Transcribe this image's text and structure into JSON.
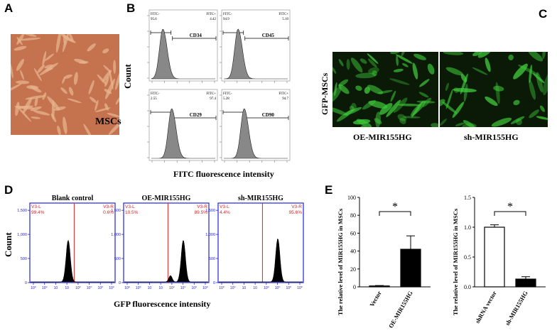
{
  "panels": {
    "A": {
      "letter": "A",
      "image_label": "MSCs",
      "colors": {
        "bg": "#c5724f",
        "cell": "#e6b48c"
      }
    },
    "B": {
      "letter": "B",
      "ylabel": "Count",
      "xlabel": "FITC fluorescence intensity",
      "plots": [
        {
          "marker": "CD34",
          "neg_label": "FITC-",
          "pos_label": "FITC+",
          "neg_pct": "95.6",
          "pos_pct": "4.42"
        },
        {
          "marker": "CD45",
          "neg_label": "FITC-",
          "pos_label": "FITC+",
          "neg_pct": "94.9",
          "pos_pct": "5.10"
        },
        {
          "marker": "CD29",
          "neg_label": "FITC-",
          "pos_label": "FITC+",
          "neg_pct": "2.55",
          "pos_pct": "97.4"
        },
        {
          "marker": "CD90",
          "neg_label": "FITC-",
          "pos_label": "FITC+",
          "neg_pct": "5.28",
          "pos_pct": "94.7"
        }
      ]
    },
    "C": {
      "letter": "C",
      "row_label": "GFP-MSCs",
      "images": [
        "OE-MIR155HG",
        "sh-MIR155HG"
      ],
      "colors": {
        "bg": "#0a1a06",
        "cell": "#3fc83a"
      }
    },
    "D": {
      "letter": "D",
      "ylabel": "Count",
      "xlabel": "GFP fluorescence intensity",
      "y_ticks": [
        "0",
        "500",
        "1,000",
        "1,500"
      ],
      "plots": [
        {
          "title": "Blank control",
          "left_gate": "V3-L",
          "right_gate": "V3-R",
          "left_pct": "99.4%",
          "right_pct": "0.6%"
        },
        {
          "title": "OE-MIR155HG",
          "left_gate": "V3-L",
          "right_gate": "V3-R",
          "left_pct": "10.5%",
          "right_pct": "89.5%"
        },
        {
          "title": "sh-MIR155HG",
          "left_gate": "V3-L",
          "right_gate": "V3-R",
          "left_pct": "4.4%",
          "right_pct": "95.6%"
        }
      ],
      "colors": {
        "axis": "#2222dd",
        "gate": "#dd2222",
        "label": "#dd2222"
      }
    },
    "E": {
      "letter": "E"
    }
  },
  "chart_data": [
    {
      "type": "bar",
      "categories": [
        "Vector",
        "OE-MIR155HG"
      ],
      "values": [
        1,
        42
      ],
      "errors": [
        0.5,
        15
      ],
      "ylabel": "The relative level of MIR155HG in MSCs",
      "ylim": [
        0,
        100
      ],
      "yticks": [
        "0",
        "20",
        "40",
        "60",
        "80",
        "100"
      ],
      "significance": "*",
      "fill": [
        "#ffffff",
        "#000000"
      ]
    },
    {
      "type": "bar",
      "categories": [
        "shRNA vector",
        "sh-MIR155HG"
      ],
      "values": [
        1.0,
        0.13
      ],
      "errors": [
        0.04,
        0.04
      ],
      "ylabel": "The relative level of MIR155HG in MSCs",
      "ylim": [
        0,
        1.5
      ],
      "yticks": [
        "0.0",
        "0.5",
        "1.0",
        "1.5"
      ],
      "significance": "*",
      "fill": [
        "#ffffff",
        "#000000"
      ]
    }
  ]
}
